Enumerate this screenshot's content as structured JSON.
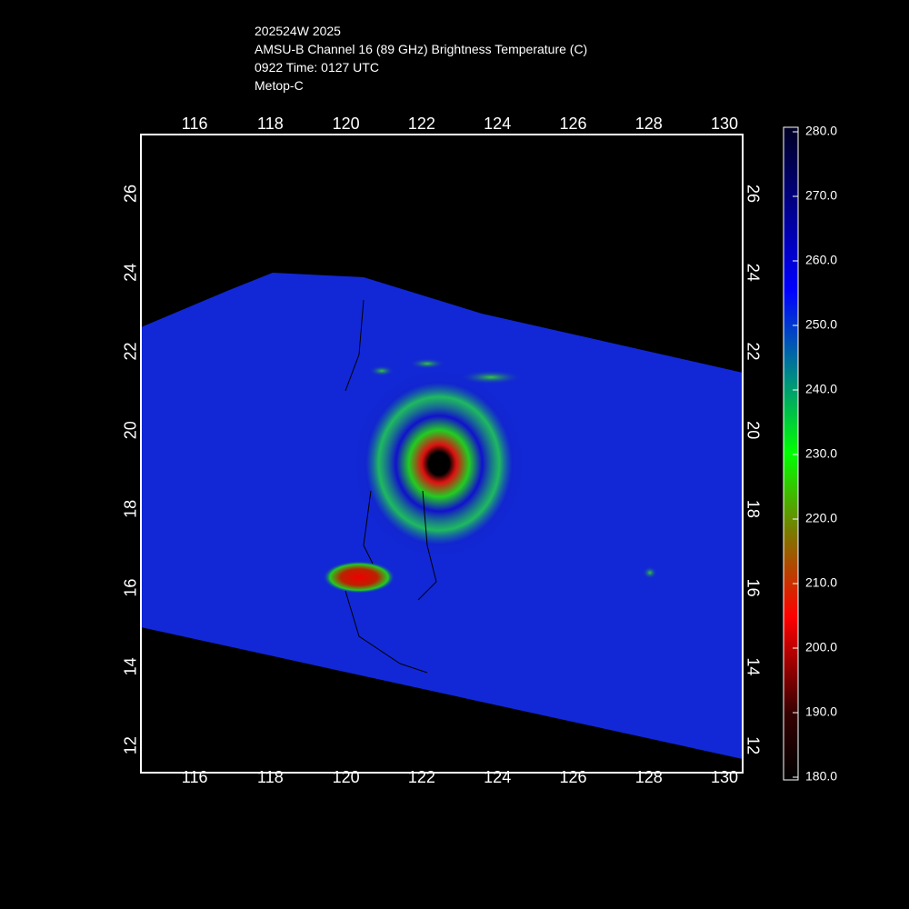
{
  "header": {
    "lines": [
      "202524W 2025",
      "AMSU-B Channel 16 (89 GHz) Brightness Temperature (C)",
      "0922 Time: 0127 UTC",
      "Metop-C"
    ]
  },
  "map": {
    "lonlim": [
      114.58,
      130.48
    ],
    "latlim": [
      11.31,
      27.5
    ],
    "lon_ticks": [
      116,
      118,
      120,
      122,
      124,
      126,
      128,
      130
    ],
    "lat_ticks": [
      12,
      14,
      16,
      18,
      20,
      22,
      24,
      26
    ],
    "grid": true
  },
  "colorbar": {
    "lim": [
      180,
      280
    ],
    "ticks": [
      {
        "value": 280,
        "label": "280.0"
      },
      {
        "value": 270,
        "label": "270.0"
      },
      {
        "value": 260,
        "label": "260.0"
      },
      {
        "value": 250,
        "label": "250.0"
      },
      {
        "value": 240,
        "label": "240.0"
      },
      {
        "value": 230,
        "label": "230.0"
      },
      {
        "value": 220,
        "label": "220.0"
      },
      {
        "value": 210,
        "label": "210.0"
      },
      {
        "value": 200,
        "label": "200.0"
      },
      {
        "value": 190,
        "label": "190.0"
      },
      {
        "value": 180,
        "label": "180.0"
      }
    ]
  }
}
